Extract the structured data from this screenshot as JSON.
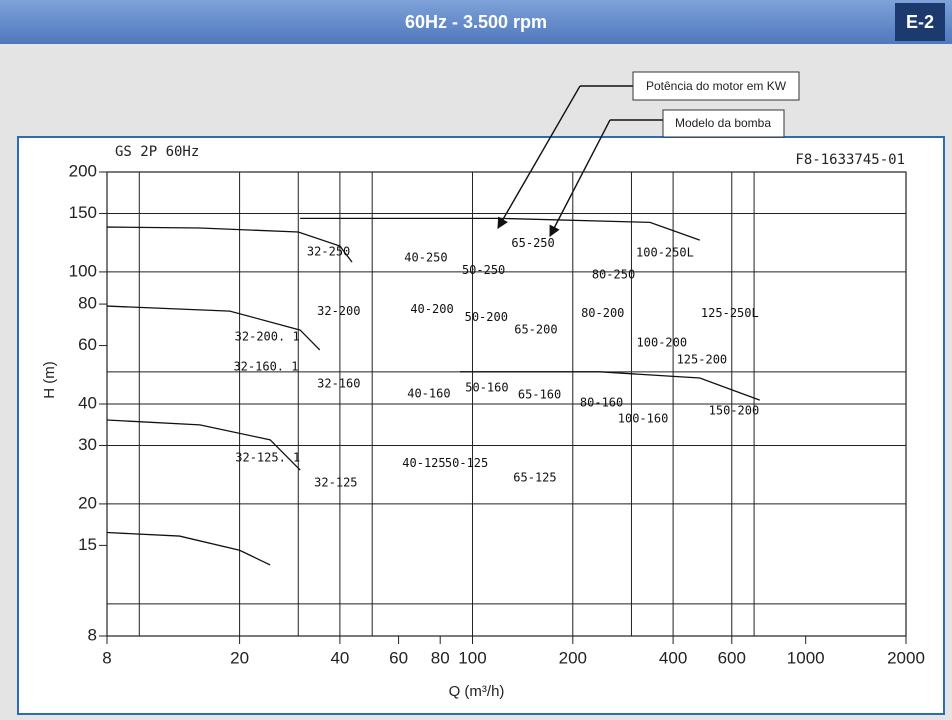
{
  "header": {
    "title": "60Hz - 3.500 rpm",
    "badge": "E-2"
  },
  "callouts": [
    "Potência do motor em KW",
    "Modelo da bomba"
  ],
  "chart_data": {
    "type": "line",
    "title": "GS 2P 60Hz",
    "code": "F8-1633745-01",
    "x_label": "Q (m³/h)",
    "y_label": "H (m)",
    "xscale": "log",
    "yscale": "log",
    "xlim": [
      8,
      2000
    ],
    "ylim": [
      8,
      200
    ],
    "xticks": [
      8,
      20,
      40,
      60,
      80,
      100,
      200,
      400,
      600,
      1000,
      2000
    ],
    "yticks": [
      8,
      15,
      20,
      30,
      40,
      60,
      80,
      100,
      150,
      200
    ],
    "x_gridlines": [
      10,
      20,
      30,
      40,
      50,
      100,
      200,
      300,
      400,
      600,
      700
    ],
    "y_gridlines": [
      10,
      20,
      30,
      40,
      50,
      100,
      150
    ],
    "color": "#111111",
    "series": [
      {
        "x": [
          8,
          15.2,
          30,
          40,
          43.5
        ],
        "y": [
          136.5,
          135.6,
          131.9,
          119.7,
          107
        ]
      },
      {
        "x": [
          8,
          18.7,
          30.4,
          34.8
        ],
        "y": [
          78.9,
          76.2,
          66.8,
          58.2
        ]
      },
      {
        "x": [
          8,
          15.2,
          24.7,
          30.4
        ],
        "y": [
          35.8,
          34.6,
          31.2,
          25.3
        ]
      },
      {
        "x": [
          8,
          13.2,
          20,
          24.7
        ],
        "y": [
          16.4,
          16.0,
          14.5,
          13.1
        ]
      },
      {
        "x": [
          30.4,
          121,
          341,
          481
        ],
        "y": [
          145,
          145,
          141,
          124.7
        ]
      },
      {
        "x": [
          91.7,
          241,
          481,
          728
        ],
        "y": [
          50,
          50,
          47.9,
          41.1
        ]
      }
    ],
    "annotations": [
      {
        "text": "32-250",
        "x": 37,
        "y": 115
      },
      {
        "text": "40-250",
        "x": 72.5,
        "y": 110
      },
      {
        "text": "50-250",
        "x": 108,
        "y": 101
      },
      {
        "text": "65-250",
        "x": 152,
        "y": 122
      },
      {
        "text": "100-250L",
        "x": 378,
        "y": 114
      },
      {
        "text": "80-250",
        "x": 265,
        "y": 97.8
      },
      {
        "text": "125-250L",
        "x": 592,
        "y": 75
      },
      {
        "text": "32-200",
        "x": 39.7,
        "y": 76
      },
      {
        "text": "40-200",
        "x": 75.6,
        "y": 77
      },
      {
        "text": "32-200. 1",
        "x": 24.2,
        "y": 63.6
      },
      {
        "text": "50-200",
        "x": 110,
        "y": 73
      },
      {
        "text": "65-200",
        "x": 155,
        "y": 66.8
      },
      {
        "text": "80-200",
        "x": 246,
        "y": 75
      },
      {
        "text": "100-200",
        "x": 370,
        "y": 61
      },
      {
        "text": "125-200",
        "x": 488,
        "y": 54.3
      },
      {
        "text": "32-160. 1",
        "x": 24,
        "y": 51.7
      },
      {
        "text": "32-160",
        "x": 39.7,
        "y": 45.9
      },
      {
        "text": "40-160",
        "x": 74,
        "y": 42.9
      },
      {
        "text": "50-160",
        "x": 110.5,
        "y": 44.7
      },
      {
        "text": "65-160",
        "x": 159,
        "y": 42.6
      },
      {
        "text": "80-160",
        "x": 244,
        "y": 40.3
      },
      {
        "text": "150-200",
        "x": 609,
        "y": 38.1
      },
      {
        "text": "100-160",
        "x": 325,
        "y": 36
      },
      {
        "text": "32-125. 1",
        "x": 24.3,
        "y": 27.5
      },
      {
        "text": "32-125",
        "x": 38.9,
        "y": 23.1
      },
      {
        "text": "40-125",
        "x": 71.5,
        "y": 26.5
      },
      {
        "text": "50-125",
        "x": 96,
        "y": 26.5
      },
      {
        "text": "65-125",
        "x": 154,
        "y": 23.9
      }
    ]
  }
}
